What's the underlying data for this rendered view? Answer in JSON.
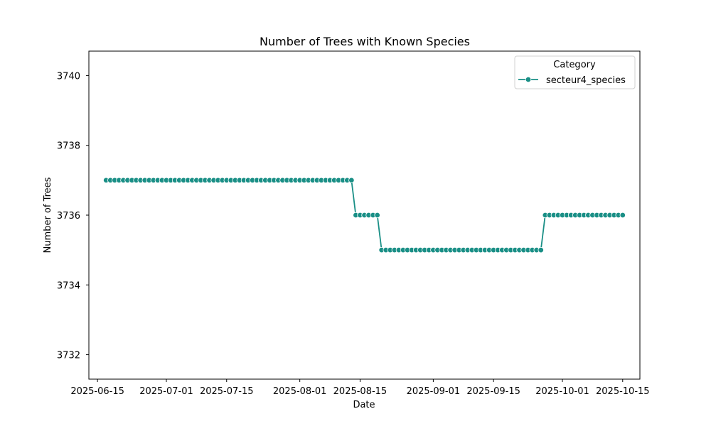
{
  "chart_data": {
    "type": "line",
    "title": "Number of Trees with Known Species",
    "xlabel": "Date",
    "ylabel": "Number of Trees",
    "xlim": [
      "2025-06-13",
      "2025-10-19"
    ],
    "ylim": [
      3731.3,
      3740.7
    ],
    "x_ticks": [
      "2025-06-15",
      "2025-07-01",
      "2025-07-15",
      "2025-08-01",
      "2025-08-15",
      "2025-09-01",
      "2025-09-15",
      "2025-10-01",
      "2025-10-15"
    ],
    "y_ticks": [
      3732,
      3734,
      3736,
      3738,
      3740
    ],
    "grid": false,
    "legend": {
      "title": "Category",
      "position": "top-right"
    },
    "series": [
      {
        "name": "secteur4_species",
        "color": "#1a8f86",
        "marker": "circle",
        "segments": [
          {
            "start": "2025-06-17",
            "end": "2025-08-13",
            "value": 3737
          },
          {
            "start": "2025-08-14",
            "end": "2025-08-19",
            "value": 3736
          },
          {
            "start": "2025-08-20",
            "end": "2025-09-26",
            "value": 3735
          },
          {
            "start": "2025-09-27",
            "end": "2025-10-15",
            "value": 3736
          }
        ]
      }
    ]
  }
}
